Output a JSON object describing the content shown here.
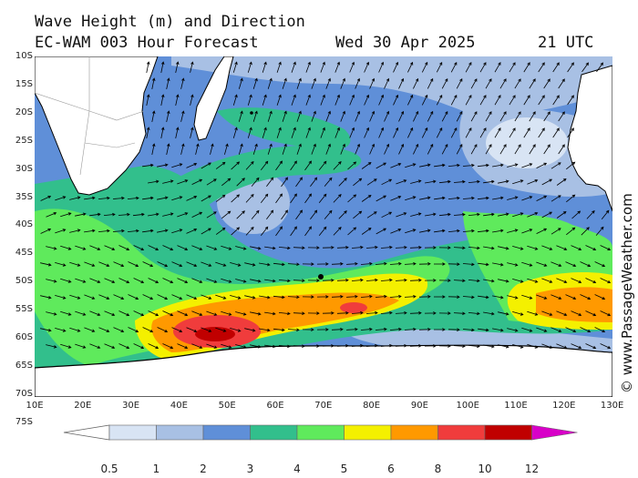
{
  "header": {
    "line1": "Wave Height (m) and Direction",
    "model": "EC-WAM 003 Hour Forecast",
    "date": "Wed 30 Apr 2025",
    "time": "21 UTC"
  },
  "credit": "© www.PassageWeather.com",
  "axes": {
    "lat_labels": [
      "10S",
      "15S",
      "20S",
      "25S",
      "30S",
      "35S",
      "40S",
      "45S",
      "50S",
      "55S",
      "60S",
      "65S",
      "70S",
      "75S"
    ],
    "lon_labels": [
      "10E",
      "20E",
      "30E",
      "40E",
      "50E",
      "60E",
      "70E",
      "80E",
      "90E",
      "100E",
      "110E",
      "120E",
      "130E"
    ]
  },
  "legend": {
    "labels": [
      "0.5",
      "1",
      "2",
      "3",
      "4",
      "5",
      "6",
      "8",
      "10",
      "12"
    ],
    "colors": [
      "#d8e4f4",
      "#a8c0e4",
      "#5f8fd8",
      "#32bf8c",
      "#5fea5c",
      "#f4f000",
      "#ff9900",
      "#f03c3c",
      "#c00000",
      "#d800c8"
    ]
  }
}
